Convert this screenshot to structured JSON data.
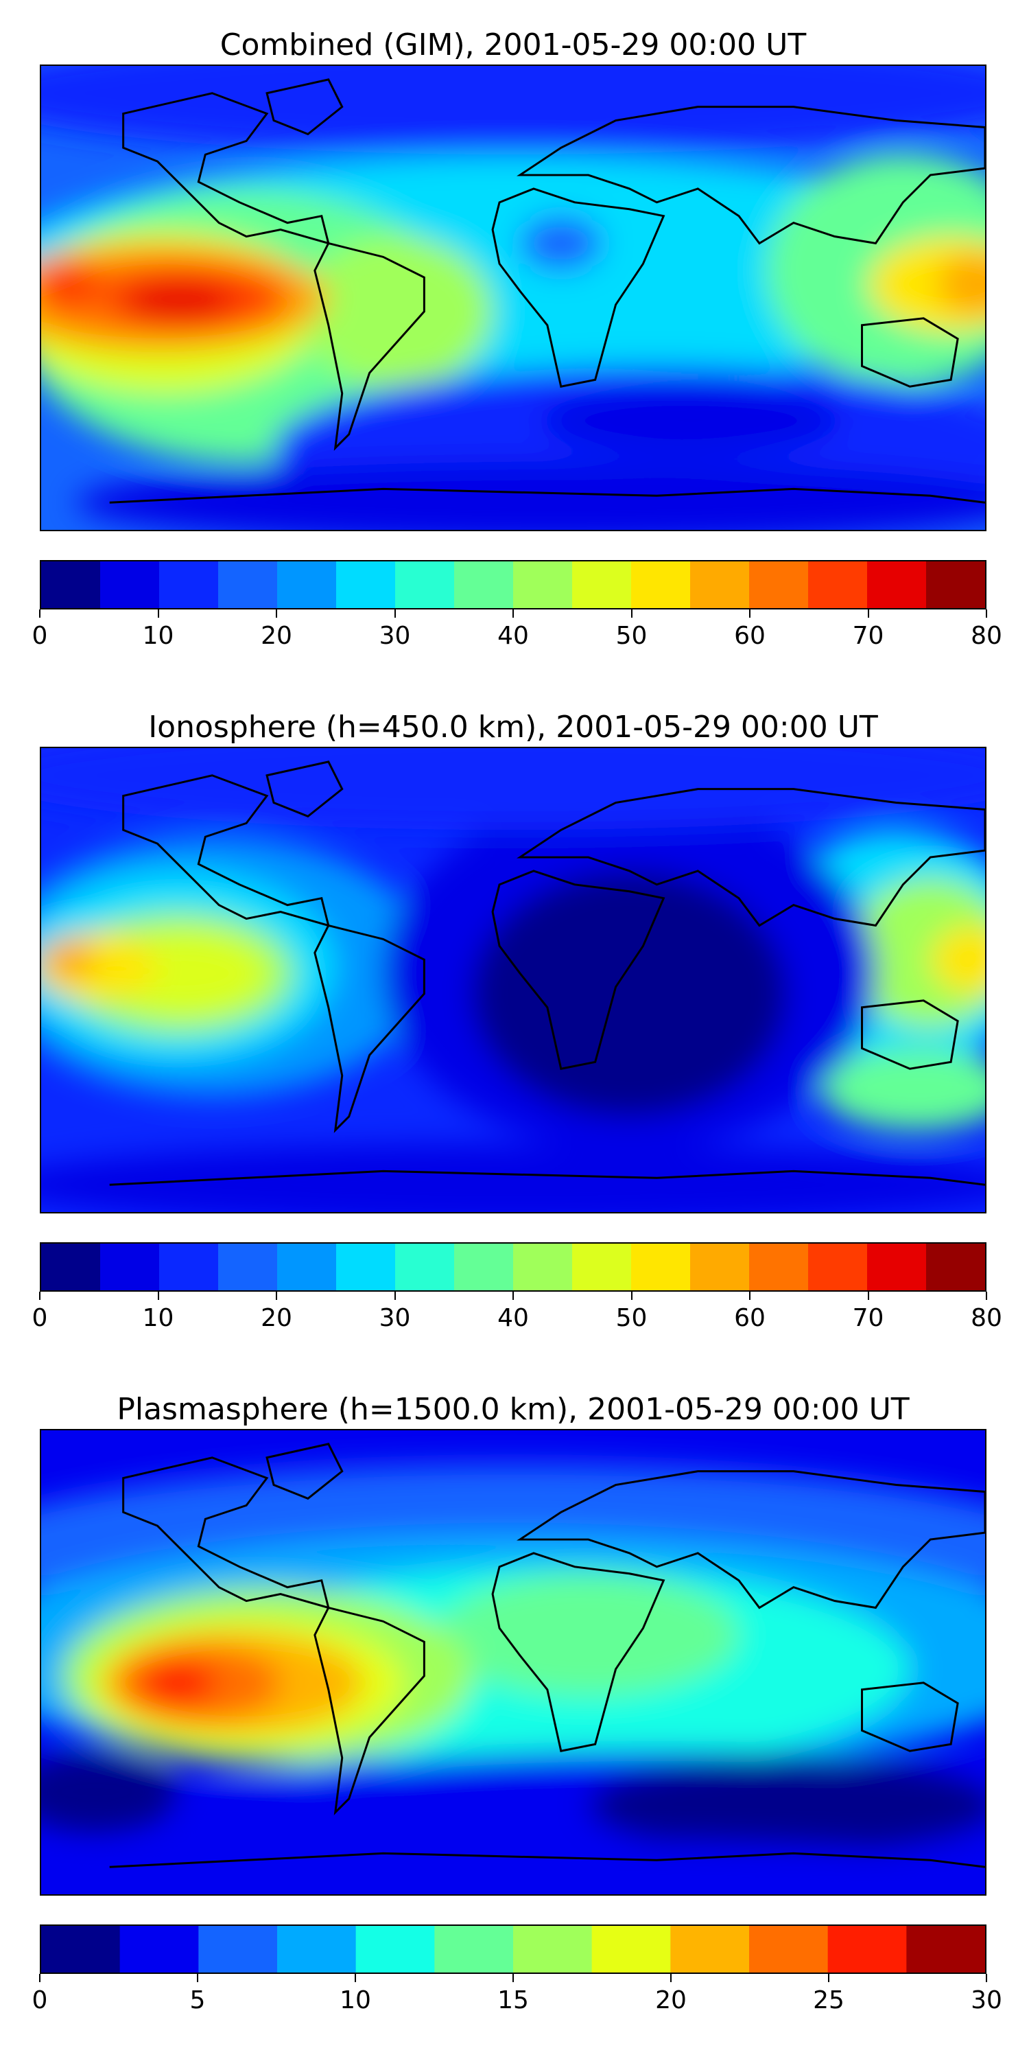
{
  "panels": [
    {
      "title": "Combined (GIM), 2001-05-29 00:00 UT",
      "colorbar": {
        "ticks": [
          "0",
          "10",
          "20",
          "30",
          "40",
          "50",
          "60",
          "70",
          "80"
        ],
        "min": 0,
        "max": 80,
        "levels": 16,
        "colors": [
          "#00008b",
          "#0000e6",
          "#0a28ff",
          "#1464ff",
          "#0096ff",
          "#00dcff",
          "#28ffd2",
          "#64ff96",
          "#a0ff5a",
          "#dcff1e",
          "#ffe600",
          "#ffaa00",
          "#ff7300",
          "#ff3c00",
          "#e60000",
          "#960000"
        ]
      }
    },
    {
      "title": "Ionosphere  (h=450.0 km), 2001-05-29 00:00 UT",
      "colorbar": {
        "ticks": [
          "0",
          "10",
          "20",
          "30",
          "40",
          "50",
          "60",
          "70",
          "80"
        ],
        "min": 0,
        "max": 80,
        "levels": 16,
        "colors": [
          "#00008b",
          "#0000e6",
          "#0a28ff",
          "#1464ff",
          "#0096ff",
          "#00dcff",
          "#28ffd2",
          "#64ff96",
          "#a0ff5a",
          "#dcff1e",
          "#ffe600",
          "#ffaa00",
          "#ff7300",
          "#ff3c00",
          "#e60000",
          "#960000"
        ]
      }
    },
    {
      "title": "Plasmasphere (h=1500.0 km), 2001-05-29 00:00 UT",
      "colorbar": {
        "ticks": [
          "0",
          "5",
          "10",
          "15",
          "20",
          "25",
          "30"
        ],
        "min": 0,
        "max": 30,
        "levels": 12,
        "colors": [
          "#00008b",
          "#0000f0",
          "#1464ff",
          "#00aaff",
          "#14ffe6",
          "#64ff96",
          "#a0ff5a",
          "#e6ff14",
          "#ffb400",
          "#ff6e00",
          "#ff1e00",
          "#a00000"
        ]
      }
    }
  ]
}
